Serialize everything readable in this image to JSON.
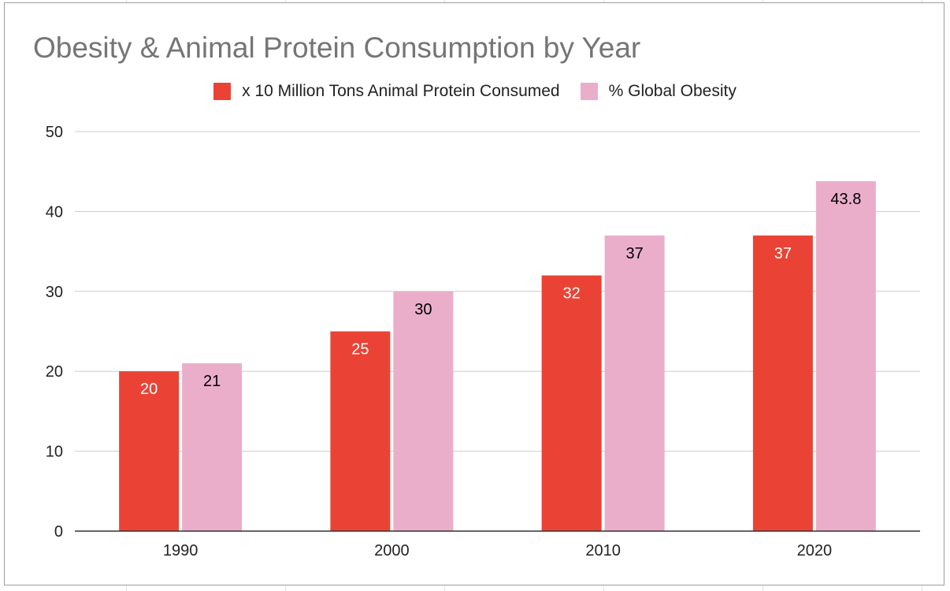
{
  "chart_data": {
    "type": "bar",
    "title": "Obesity & Animal Protein Consumption by Year",
    "categories": [
      "1990",
      "2000",
      "2010",
      "2020"
    ],
    "series": [
      {
        "name": "x 10 Million Tons Animal Protein Consumed",
        "values": [
          20,
          25,
          32,
          37
        ],
        "color": "#ea4335",
        "label_color": "#ffffff",
        "value_labels": [
          "20",
          "25",
          "32",
          "37"
        ]
      },
      {
        "name": "% Global Obesity",
        "values": [
          21,
          30,
          37,
          43.8
        ],
        "color": "#eaaecb",
        "label_color": "#000000",
        "value_labels": [
          "21",
          "30",
          "37",
          "43.8"
        ]
      }
    ],
    "ylim": [
      0,
      50
    ],
    "yticks": [
      "0",
      "10",
      "20",
      "30",
      "40",
      "50"
    ],
    "grid": true,
    "legend_position": "top-center",
    "xlabel": "",
    "ylabel": ""
  }
}
